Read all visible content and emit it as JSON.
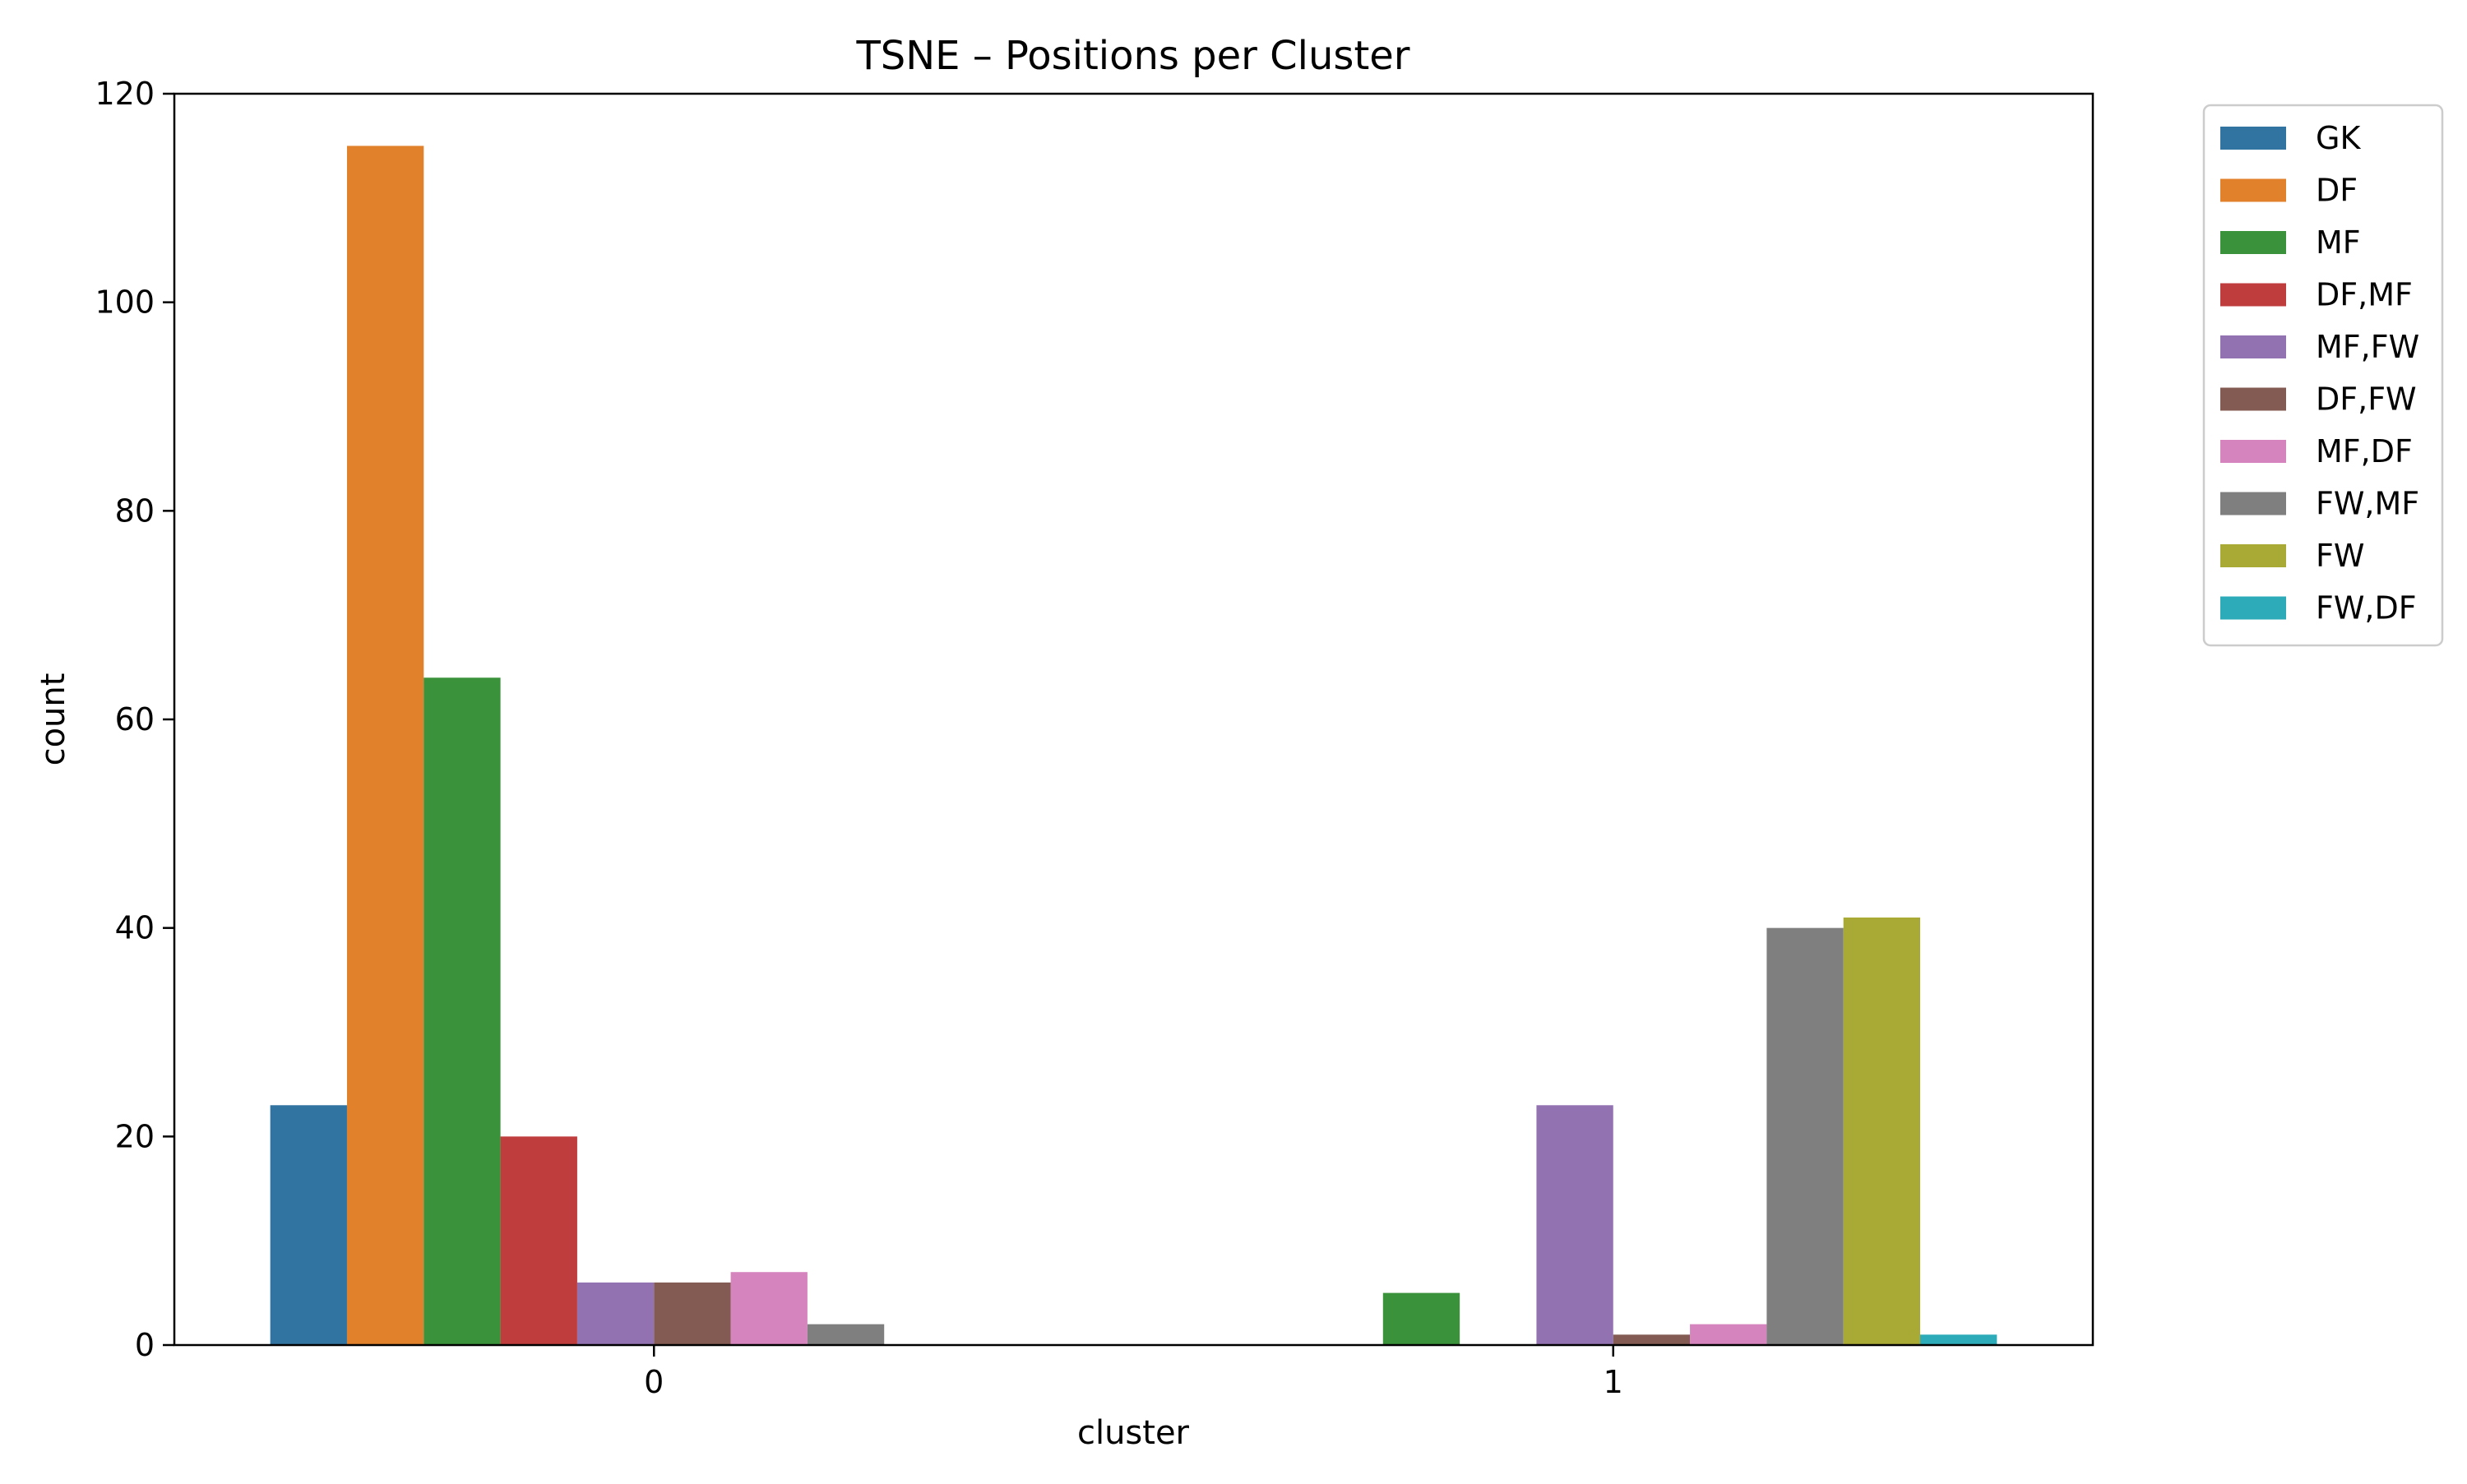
{
  "chart_data": {
    "type": "bar",
    "title": "TSNE – Positions per Cluster",
    "xlabel": "cluster",
    "ylabel": "count",
    "categories": [
      "0",
      "1"
    ],
    "ylim": [
      0,
      120
    ],
    "yticks": [
      "0",
      "20",
      "40",
      "60",
      "80",
      "100",
      "120"
    ],
    "grid": false,
    "legend_position": "outside-top-right",
    "series": [
      {
        "name": "GK",
        "color": "#3274a1",
        "values": [
          23,
          0
        ]
      },
      {
        "name": "DF",
        "color": "#e1812c",
        "values": [
          115,
          0
        ]
      },
      {
        "name": "MF",
        "color": "#3a923a",
        "values": [
          64,
          5
        ]
      },
      {
        "name": "DF,MF",
        "color": "#c03d3e",
        "values": [
          20,
          0
        ]
      },
      {
        "name": "MF,FW",
        "color": "#9372b2",
        "values": [
          6,
          23
        ]
      },
      {
        "name": "DF,FW",
        "color": "#845b53",
        "values": [
          6,
          1
        ]
      },
      {
        "name": "MF,DF",
        "color": "#d684bd",
        "values": [
          7,
          2
        ]
      },
      {
        "name": "FW,MF",
        "color": "#7f7f7f",
        "values": [
          2,
          40
        ]
      },
      {
        "name": "FW",
        "color": "#a9aa35",
        "values": [
          0,
          41
        ]
      },
      {
        "name": "FW,DF",
        "color": "#2eabb8",
        "values": [
          0,
          1
        ]
      }
    ]
  }
}
